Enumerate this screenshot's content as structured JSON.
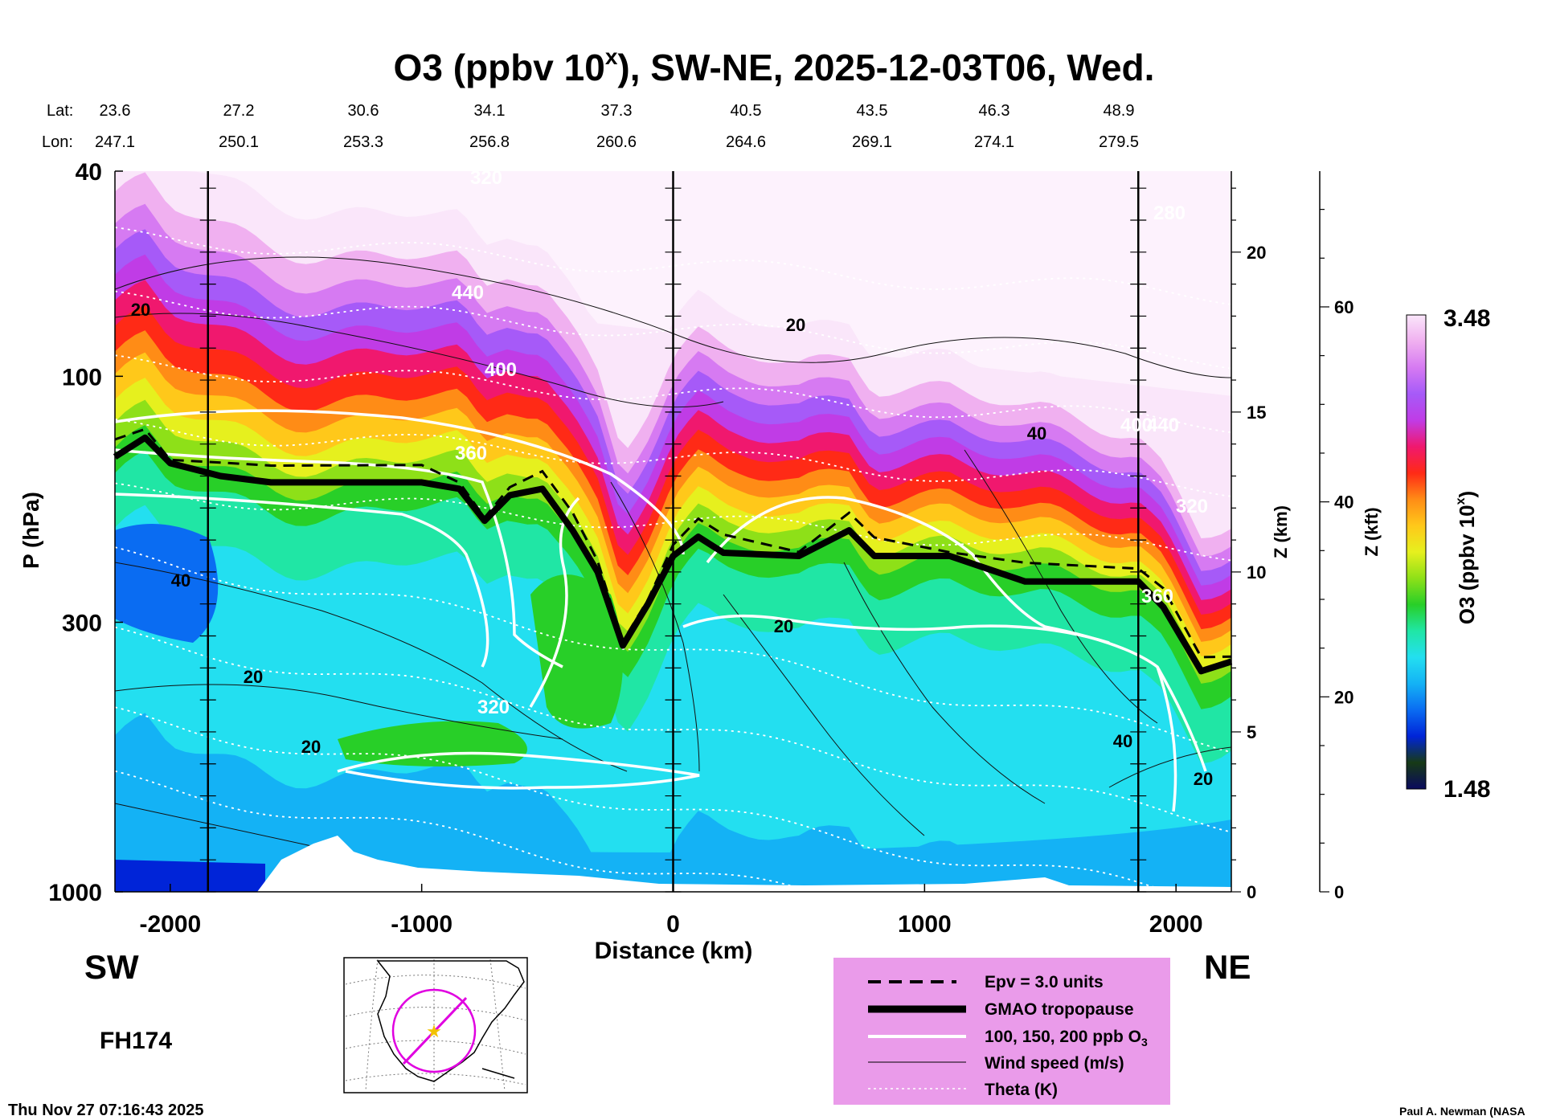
{
  "chart_data": {
    "type": "heatmap",
    "title_main": "O3 (ppbv 10",
    "title_sup": "x",
    "title_rest": "), SW-NE, 2025-12-03T06, Wed.",
    "lat_label": "Lat:",
    "lon_label": "Lon:",
    "lat_ticks": [
      "23.6",
      "27.2",
      "30.6",
      "34.1",
      "37.3",
      "40.5",
      "43.5",
      "46.3",
      "48.9"
    ],
    "lon_ticks": [
      "247.1",
      "250.1",
      "253.3",
      "256.8",
      "260.6",
      "264.6",
      "269.1",
      "274.1",
      "279.5"
    ],
    "xlabel": "Distance (km)",
    "x_ticks": [
      "-2000",
      "-1000",
      "0",
      "1000",
      "2000"
    ],
    "x_tick_values": [
      -2000,
      -1000,
      0,
      1000,
      2000
    ],
    "xlim": [
      -2220,
      2220
    ],
    "vertical_section_lines_km": [
      -1850,
      0,
      1850
    ],
    "ylabel": "P (hPa)",
    "y_ticks": [
      "40",
      "100",
      "300",
      "1000"
    ],
    "y_tick_values": [
      40,
      100,
      300,
      1000
    ],
    "ylim": [
      1000,
      40
    ],
    "z_km_label": "Z (km)",
    "z_km_ticks": [
      "20",
      "15",
      "10",
      "5",
      "0"
    ],
    "z_kft_label": "Z (kft)",
    "z_kft_ticks": [
      "60",
      "40",
      "20",
      "0"
    ],
    "colorbar_label": "O3 (ppbv 10",
    "colorbar_sup": "x",
    "colorbar_close": ")",
    "colorbar_max": "3.48",
    "colorbar_min": "1.48",
    "colorbar_range": [
      1.48,
      3.48
    ],
    "colorbar_colors": [
      "#0a0a5e",
      "#173a16",
      "#0024d8",
      "#0a6cf2",
      "#14b2f5",
      "#23dff0",
      "#20e6a5",
      "#28cf28",
      "#8ee018",
      "#e6f01e",
      "#ffc81a",
      "#ff8c16",
      "#ff2a16",
      "#f0186e",
      "#c03ce6",
      "#a65af8",
      "#d67af2",
      "#f0b0f0",
      "#fae6fa"
    ],
    "tropopause_km": [
      [
        -2220,
        13.6
      ],
      [
        -2100,
        14.2
      ],
      [
        -2000,
        13.4
      ],
      [
        -1800,
        13.0
      ],
      [
        -1600,
        12.8
      ],
      [
        -1000,
        12.8
      ],
      [
        -850,
        12.6
      ],
      [
        -750,
        11.6
      ],
      [
        -650,
        12.4
      ],
      [
        -520,
        12.6
      ],
      [
        -400,
        11.3
      ],
      [
        -300,
        10.0
      ],
      [
        -200,
        7.7
      ],
      [
        -100,
        9.0
      ],
      [
        0,
        10.5
      ],
      [
        100,
        11.1
      ],
      [
        200,
        10.6
      ],
      [
        500,
        10.5
      ],
      [
        700,
        11.3
      ],
      [
        800,
        10.5
      ],
      [
        1100,
        10.5
      ],
      [
        1400,
        9.7
      ],
      [
        1850,
        9.7
      ],
      [
        1950,
        8.9
      ],
      [
        2100,
        6.9
      ],
      [
        2220,
        7.2
      ]
    ],
    "contour_labels": {
      "theta": [
        "320",
        "440",
        "400",
        "360",
        "320",
        "280",
        "440",
        "360",
        "320",
        "400"
      ],
      "wind": [
        "20",
        "20",
        "40",
        "20",
        "20",
        "40",
        "20",
        "40",
        "20"
      ]
    },
    "legend": [
      {
        "label": "Epv = 3.0 units"
      },
      {
        "label": "GMAO tropopause"
      },
      {
        "label": "100, 150, 200 ppb O",
        "sub": "3"
      },
      {
        "label": "Wind speed (m/s)"
      },
      {
        "label": "Theta (K)"
      }
    ],
    "legend_bg": "#ea9bea",
    "direction_left": "SW",
    "direction_right": "NE",
    "forecast_hour": "FH174",
    "timestamp": "Thu Nov 27 07:16:43 2025",
    "credit": "Paul A. Newman (NASA"
  }
}
